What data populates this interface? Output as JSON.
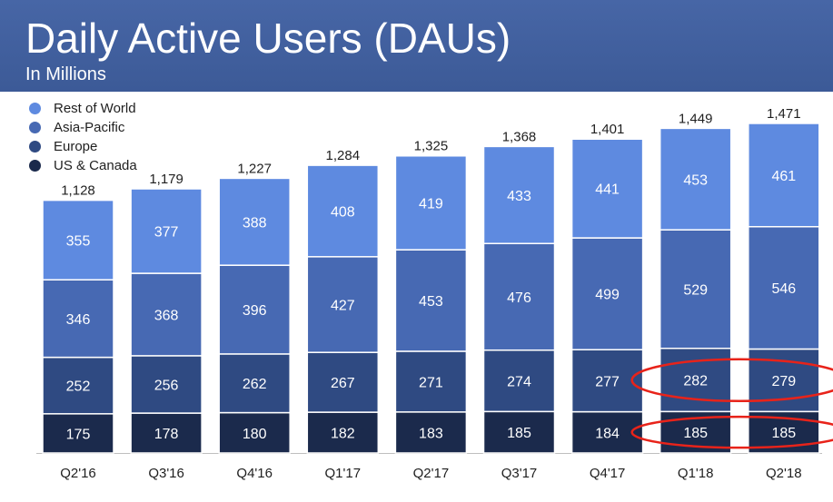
{
  "header": {
    "title": "Daily Active Users (DAUs)",
    "subtitle": "In Millions"
  },
  "colors": {
    "header_bg": "#3f5d9c",
    "us_canada": "#1b2a4c",
    "europe": "#2f4a82",
    "asia_pacific": "#4769b3",
    "rest_of_world": "#5e8ae0",
    "highlight_ellipse": "#e8231a"
  },
  "chart_data": {
    "type": "bar",
    "stacked": true,
    "title": "Daily Active Users (DAUs)",
    "subtitle": "In Millions",
    "xlabel": "",
    "ylabel": "",
    "legend_position": "top-left",
    "grid": false,
    "categories": [
      "Q2'16",
      "Q3'16",
      "Q4'16",
      "Q1'17",
      "Q2'17",
      "Q3'17",
      "Q4'17",
      "Q1'18",
      "Q2'18"
    ],
    "totals": [
      "1,128",
      "1,179",
      "1,227",
      "1,284",
      "1,325",
      "1,368",
      "1,401",
      "1,449",
      "1,471"
    ],
    "series": [
      {
        "name": "US & Canada",
        "color": "#1b2a4c",
        "values": [
          175,
          178,
          180,
          182,
          183,
          185,
          184,
          185,
          185
        ]
      },
      {
        "name": "Europe",
        "color": "#2f4a82",
        "values": [
          252,
          256,
          262,
          267,
          271,
          274,
          277,
          282,
          279
        ]
      },
      {
        "name": "Asia-Pacific",
        "color": "#4769b3",
        "values": [
          346,
          368,
          396,
          427,
          453,
          476,
          499,
          529,
          546
        ]
      },
      {
        "name": "Rest of World",
        "color": "#5e8ae0",
        "values": [
          355,
          377,
          388,
          408,
          419,
          433,
          441,
          453,
          461
        ]
      }
    ],
    "ylim": [
      0,
      1471
    ],
    "highlights": [
      {
        "series": "Europe",
        "categories": [
          "Q1'18",
          "Q2'18"
        ]
      },
      {
        "series": "US & Canada",
        "categories": [
          "Q1'18",
          "Q2'18"
        ]
      }
    ]
  }
}
